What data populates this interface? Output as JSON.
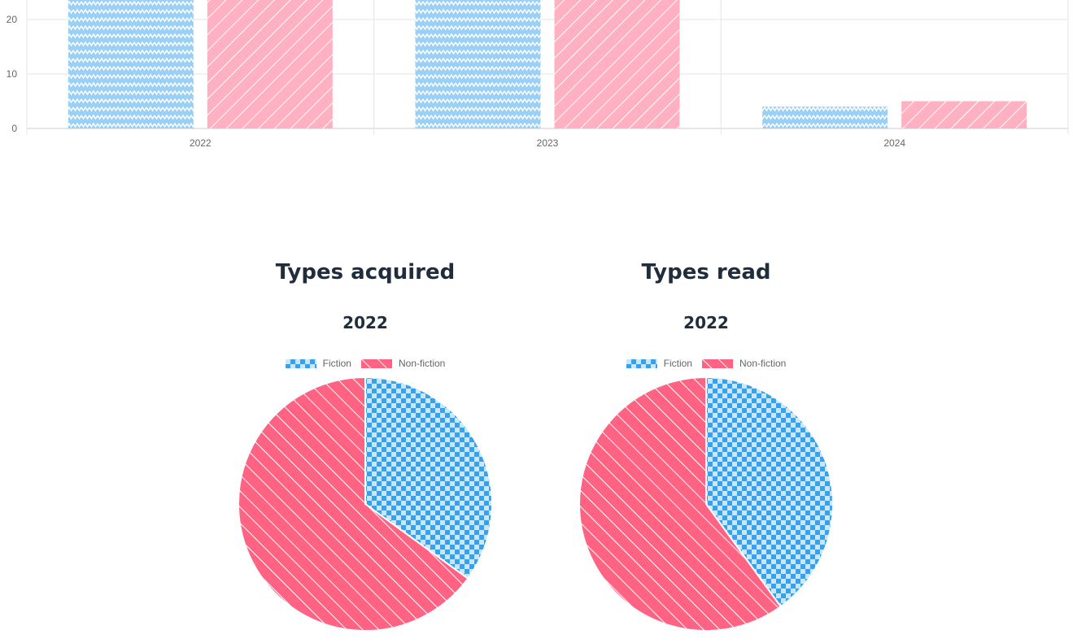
{
  "chart_data": [
    {
      "type": "bar",
      "categories": [
        "2022",
        "2023",
        "2024"
      ],
      "series": [
        {
          "values": [
            24,
            24,
            4
          ],
          "color": "#9ad0f5",
          "pattern": "zigzag"
        },
        {
          "values": [
            24,
            24,
            5
          ],
          "color": "#ffb1c1",
          "pattern": "diagonal"
        }
      ],
      "y_ticks": [
        "0",
        "10",
        "20"
      ],
      "ylim": [
        0,
        20
      ],
      "grid": true
    },
    {
      "type": "pie",
      "title": "Types acquired",
      "subtitle": "2022",
      "labels": [
        "Fiction",
        "Non-fiction"
      ],
      "values": [
        35,
        65
      ],
      "colors": [
        "#36a2eb",
        "#ff6384"
      ],
      "legend": "top"
    },
    {
      "type": "pie",
      "title": "Types read",
      "subtitle": "2022",
      "labels": [
        "Fiction",
        "Non-fiction"
      ],
      "values": [
        40,
        60
      ],
      "colors": [
        "#36a2eb",
        "#ff6384"
      ],
      "legend": "top"
    }
  ]
}
